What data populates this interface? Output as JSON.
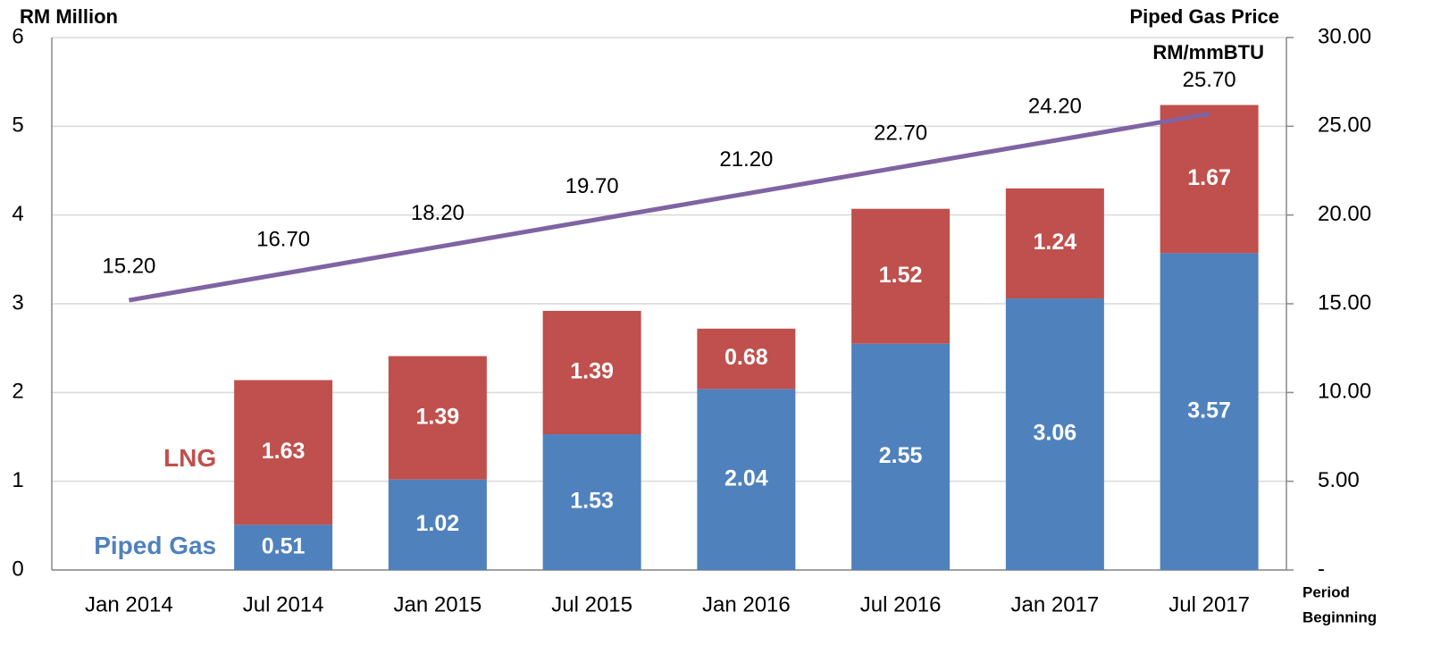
{
  "chart_data": {
    "type": "stacked-bar-line",
    "ylabel": "RM Million",
    "y2label": [
      "Piped Gas Price",
      "RM/mmBTU"
    ],
    "xlabel": [
      "Period",
      "Beginning"
    ],
    "categories": [
      "Jan 2014",
      "Jul 2014",
      "Jan 2015",
      "Jul 2015",
      "Jan 2016",
      "Jul 2016",
      "Jan 2017",
      "Jul 2017"
    ],
    "series": [
      {
        "name": "Piped Gas",
        "color": "#4f81bd",
        "values": [
          null,
          0.51,
          1.02,
          1.53,
          2.04,
          2.55,
          3.06,
          3.57
        ]
      },
      {
        "name": "LNG",
        "color": "#c0504d",
        "values": [
          null,
          1.63,
          1.39,
          1.39,
          0.68,
          1.52,
          1.24,
          1.67
        ]
      },
      {
        "type": "line",
        "axis": "y2",
        "color": "#8064a2",
        "values": [
          15.2,
          16.7,
          18.2,
          19.7,
          21.2,
          22.7,
          24.2,
          25.7
        ],
        "value_labels": [
          "15.20",
          "16.70",
          "18.20",
          "19.70",
          "21.20",
          "22.70",
          "24.20",
          "25.70"
        ]
      }
    ],
    "ylim": [
      0,
      6
    ],
    "yticks": [
      0,
      1,
      2,
      3,
      4,
      5,
      6
    ],
    "y2lim": [
      0,
      30
    ],
    "y2ticks": [
      {
        "value": 0,
        "label": "-"
      },
      {
        "value": 5,
        "label": "5.00"
      },
      {
        "value": 10,
        "label": "10.00"
      },
      {
        "value": 15,
        "label": "15.00"
      },
      {
        "value": 20,
        "label": "20.00"
      },
      {
        "value": 25,
        "label": "25.00"
      },
      {
        "value": 30,
        "label": "30.00"
      }
    ],
    "grid": true
  }
}
